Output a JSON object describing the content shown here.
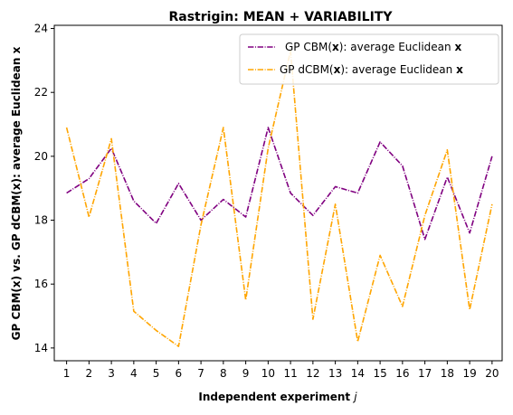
{
  "chart_data": {
    "type": "line",
    "title": "Rastrigin: MEAN + VARIABILITY",
    "xlabel": "Independent experiment j",
    "ylabel": "GP CBM(x) vs. GP dCBM(x): average Euclidean x",
    "x": [
      1,
      2,
      3,
      4,
      5,
      6,
      7,
      8,
      9,
      10,
      11,
      12,
      13,
      14,
      15,
      16,
      17,
      18,
      19,
      20
    ],
    "xticks": [
      "1",
      "2",
      "3",
      "4",
      "5",
      "6",
      "7",
      "8",
      "9",
      "10",
      "11",
      "12",
      "13",
      "14",
      "15",
      "16",
      "17",
      "18",
      "19",
      "20"
    ],
    "xlim": [
      0.45,
      20.45
    ],
    "ylim": [
      13.6,
      24.1
    ],
    "yticks": [
      14,
      16,
      18,
      20,
      22,
      24
    ],
    "ytick_labels": [
      "14",
      "16",
      "18",
      "20",
      "22",
      "24"
    ],
    "grid": false,
    "legend_position": "top-right",
    "series": [
      {
        "name": "GP CBM(x): average Euclidean x",
        "color": "#800080",
        "linestyle": "dashdot",
        "values": [
          18.85,
          19.3,
          20.25,
          18.6,
          17.9,
          19.15,
          18.0,
          18.65,
          18.1,
          20.9,
          18.85,
          18.15,
          19.05,
          18.85,
          20.45,
          19.7,
          17.4,
          19.35,
          17.6,
          20.0
        ]
      },
      {
        "name": "GP dCBM(x): average Euclidean x",
        "color": "#FFA500",
        "linestyle": "dashdot",
        "values": [
          20.9,
          18.1,
          20.55,
          15.15,
          14.55,
          14.05,
          17.85,
          20.9,
          15.5,
          20.25,
          23.3,
          14.9,
          18.5,
          14.2,
          16.9,
          15.3,
          18.15,
          20.2,
          15.2,
          18.5
        ]
      }
    ]
  },
  "legend": {
    "entries": [
      {
        "prefix": "GP CBM(",
        "bold": "x",
        "middle": "): average Euclidean ",
        "suffix_bold": "x"
      },
      {
        "prefix": "GP dCBM(",
        "bold": "x",
        "middle": "): average Euclidean ",
        "suffix_bold": "x"
      }
    ]
  },
  "axes_text": {
    "xlabel_main": "Independent experiment ",
    "xlabel_var": "j",
    "ylabel_text": "GP CBM(x) vs. GP dCBM(x): average Euclidean x"
  }
}
